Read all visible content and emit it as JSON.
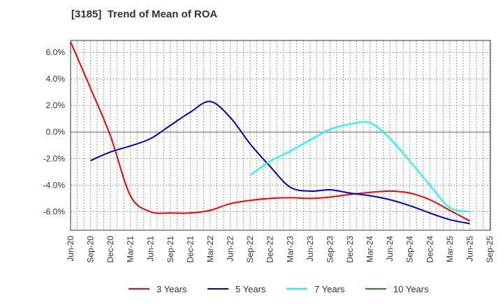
{
  "chart_data": {
    "type": "line",
    "title": "[3185]  Trend of Mean of ROA",
    "xlabel": "",
    "ylabel": "",
    "ylim": [
      -7.4,
      6.9
    ],
    "yticks": [
      6.0,
      4.0,
      2.0,
      0.0,
      -2.0,
      -4.0,
      -6.0
    ],
    "ytick_labels": [
      "6.0%",
      "4.0%",
      "2.0%",
      "0.0%",
      "-2.0%",
      "-4.0%",
      "-6.0%"
    ],
    "x": [
      "Jun-20",
      "Sep-20",
      "Dec-20",
      "Mar-21",
      "Jun-21",
      "Sep-21",
      "Dec-21",
      "Mar-22",
      "Jun-22",
      "Sep-22",
      "Dec-22",
      "Mar-23",
      "Jun-23",
      "Sep-23",
      "Dec-23",
      "Mar-24",
      "Jun-24",
      "Sep-24",
      "Dec-24",
      "Mar-25",
      "Jun-25",
      "Sep-25"
    ],
    "grid": true,
    "legend_position": "bottom",
    "series": [
      {
        "name": "3 Years",
        "color": "#ff0000",
        "values": [
          6.8,
          3.3,
          -0.3,
          -4.8,
          -6.0,
          -6.1,
          -6.1,
          -5.9,
          -5.4,
          -5.15,
          -5.0,
          -4.95,
          -5.0,
          -4.9,
          -4.7,
          -4.55,
          -4.45,
          -4.6,
          -5.1,
          -5.9,
          -6.7,
          null
        ]
      },
      {
        "name": "5 Years",
        "color": "#0000cd",
        "values": [
          null,
          -2.15,
          -1.5,
          -1.05,
          -0.5,
          0.5,
          1.5,
          2.3,
          1.1,
          -0.9,
          -2.6,
          -4.15,
          -4.45,
          -4.35,
          -4.6,
          -4.8,
          -5.1,
          -5.55,
          -6.1,
          -6.6,
          -6.9,
          null
        ]
      },
      {
        "name": "7 Years",
        "color": "#00ffff",
        "values": [
          null,
          null,
          null,
          null,
          null,
          null,
          null,
          null,
          null,
          -3.25,
          -2.2,
          -1.45,
          -0.6,
          0.2,
          0.6,
          0.7,
          -0.5,
          -2.2,
          -4.0,
          -5.7,
          -6.0,
          null
        ]
      },
      {
        "name": "10 Years",
        "color": "#228b22",
        "values": [
          null,
          null,
          null,
          null,
          null,
          null,
          null,
          null,
          null,
          null,
          null,
          null,
          null,
          null,
          null,
          null,
          null,
          null,
          null,
          null,
          null,
          null
        ]
      }
    ]
  }
}
